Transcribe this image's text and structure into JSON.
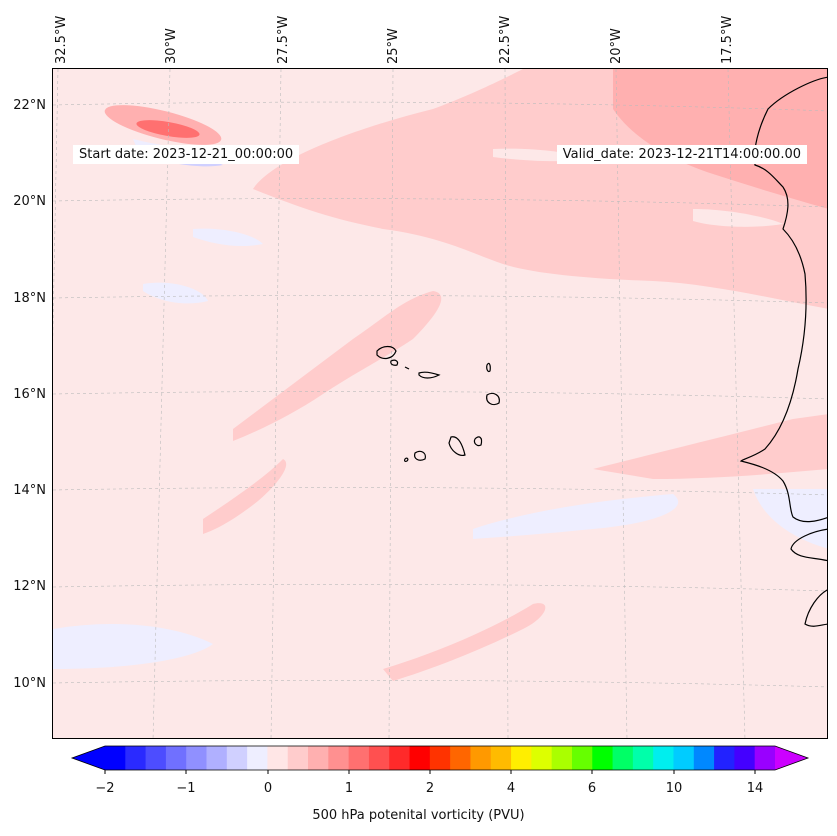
{
  "map": {
    "lon_labels": [
      "32.5°W",
      "30°W",
      "27.5°W",
      "25°W",
      "22.5°W",
      "20°W",
      "17.5°W"
    ],
    "lat_labels": [
      "22°N",
      "20°N",
      "18°N",
      "16°N",
      "14°N",
      "12°N",
      "10°N"
    ],
    "start_date": "Start date: 2023-12-21_00:00:00",
    "valid_date": "Valid_date: 2023-12-21T14:00:00.00"
  },
  "colorbar": {
    "title": "500 hPa potenital vorticity (PVU)",
    "ticks": [
      "−2",
      "−1",
      "0",
      "1",
      "2",
      "4",
      "6",
      "10",
      "14"
    ],
    "colors": [
      "#0000ff",
      "#2a2aff",
      "#4d4dff",
      "#7070ff",
      "#9090ff",
      "#b0b0ff",
      "#d0d0ff",
      "#eeeeff",
      "#ffe6e6",
      "#ffcccc",
      "#ffb0b0",
      "#ff9090",
      "#ff7070",
      "#ff5050",
      "#ff2a2a",
      "#ff0000",
      "#ff3300",
      "#ff6600",
      "#ff9900",
      "#ffbb00",
      "#ffee00",
      "#ddff00",
      "#aaff00",
      "#66ff00",
      "#00ff00",
      "#00ff66",
      "#00ffaa",
      "#00eeee",
      "#00ccff",
      "#0088ff",
      "#2222ff",
      "#4400ff",
      "#9900ff"
    ],
    "extend_min_color": "#0000ff",
    "extend_max_color": "#cc00ff"
  }
}
